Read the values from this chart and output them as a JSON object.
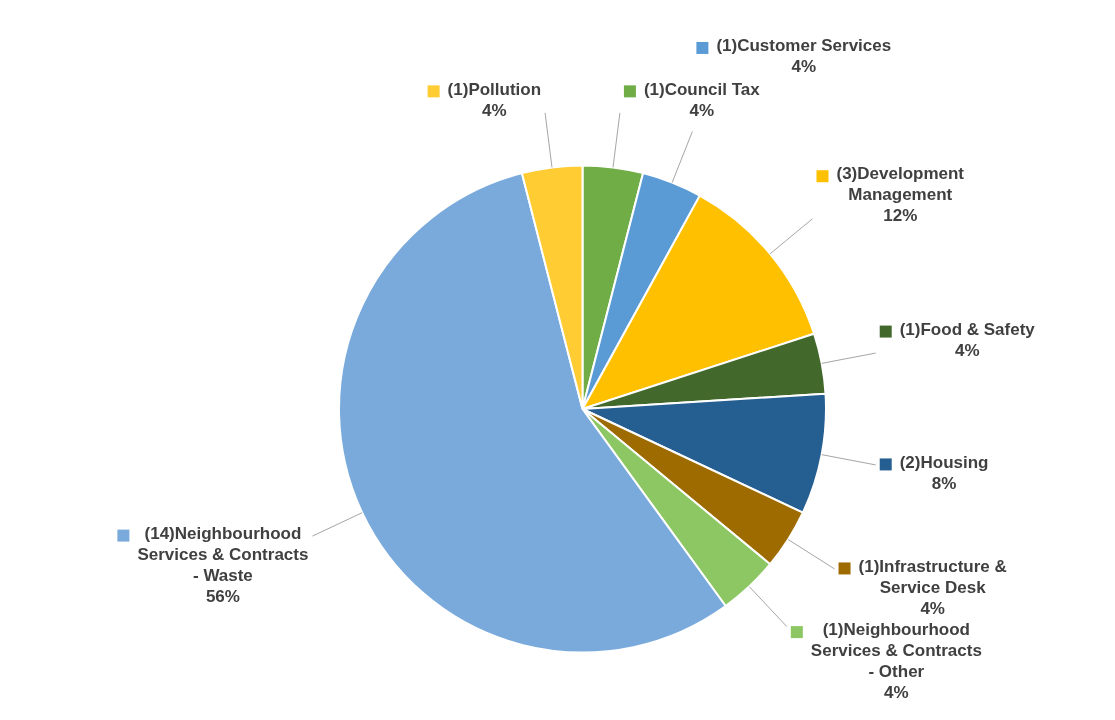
{
  "chart_data": {
    "type": "pie",
    "categories": [
      "(1)Council Tax",
      "(1)Customer Services",
      "(3)Development Management",
      "(1)Food & Safety",
      "(2)Housing",
      "(1)Infrastructure & Service Desk",
      "(1)Neighbourhood Services & Contracts - Other",
      "(14)Neighbourhood Services & Contracts - Waste",
      "(1)Pollution"
    ],
    "values": [
      4,
      4,
      12,
      4,
      8,
      4,
      4,
      56,
      4
    ],
    "colors": [
      "#70ad47",
      "#5b9bd5",
      "#ffc000",
      "#43682b",
      "#255e91",
      "#9e6b00",
      "#8cc763",
      "#7aaadc",
      "#ffcc33"
    ],
    "legend": "right",
    "value_labels": [
      "4%",
      "4%",
      "12%",
      "4%",
      "8%",
      "4%",
      "4%",
      "56%",
      "4%"
    ]
  }
}
